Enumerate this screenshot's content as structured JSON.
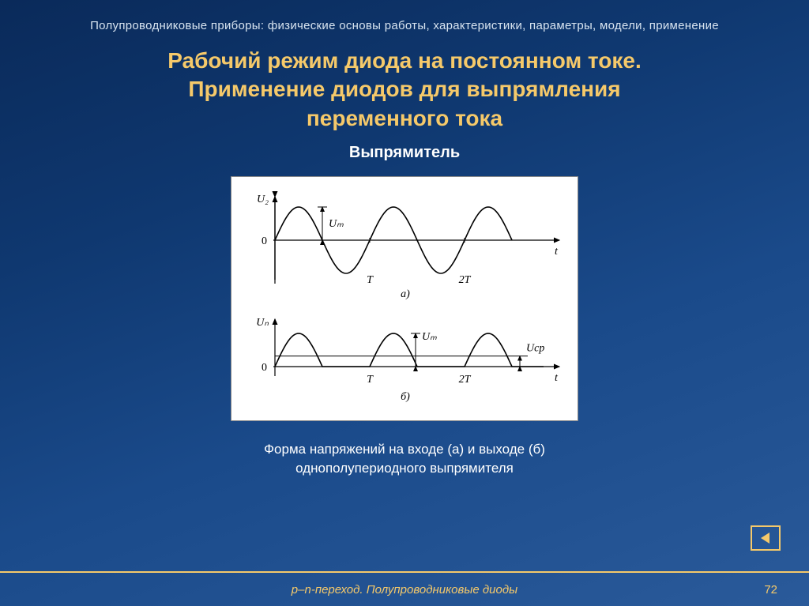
{
  "header": "Полупроводниковые приборы: физические основы работы, характеристики, параметры, модели,   применение",
  "title_line1": "Рабочий режим диода на постоянном токе.",
  "title_line2": "Применение диодов для выпрямления",
  "title_line3": "переменного тока",
  "subtitle": "Выпрямитель",
  "caption_line1": "Форма напряжений на входе (а) и выходе (б)",
  "caption_line2": "однополупериодного выпрямителя",
  "footer_text": "p–n-переход. Полупроводниковые диоды",
  "page_number": "72",
  "diagram": {
    "bg": "#ffffff",
    "axis_color": "#000000",
    "wave_color": "#000000",
    "font_family": "Times, serif",
    "font_size_label": 14,
    "font_size_sub": 14,
    "chart_a": {
      "y_label": "U₂",
      "zero_label": "0",
      "amplitude_label": "Uₘ",
      "x_ticks": [
        "T",
        "2T"
      ],
      "x_axis_label": "t",
      "sub_label": "a)",
      "period": 120,
      "amplitude": 42,
      "cycles": 2.5
    },
    "chart_b": {
      "y_label": "Uₙ",
      "zero_label": "0",
      "amplitude_label": "Uₘ",
      "avg_label": "Uср",
      "x_ticks": [
        "T",
        "2T"
      ],
      "x_axis_label": "t",
      "sub_label": "б)",
      "period": 120,
      "amplitude": 42,
      "cycles": 2.5,
      "avg_ratio": 0.318
    }
  },
  "colors": {
    "accent": "#f5c96a",
    "text_light": "#d8e4f0",
    "text_white": "#ffffff"
  }
}
